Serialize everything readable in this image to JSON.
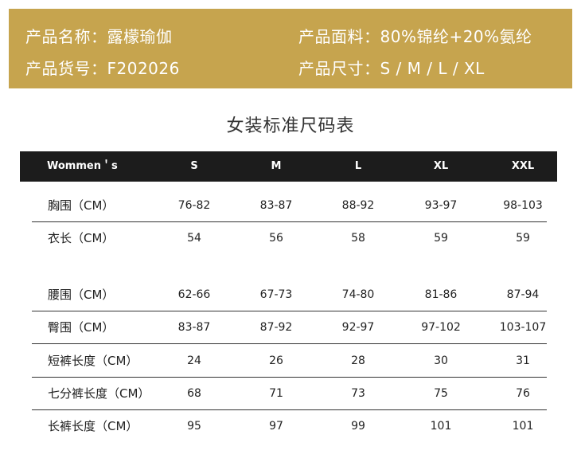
{
  "banner": {
    "name_label": "产品名称：",
    "name_value": "露檬瑜伽",
    "fabric_label": "产品面料：",
    "fabric_value": "80%锦纶+20%氨纶",
    "sku_label": "产品货号：",
    "sku_value": "F202026",
    "size_label": "产品尺寸：",
    "size_value": "S / M / L / XL"
  },
  "table": {
    "title": "女装标准尺码表",
    "header": [
      "Wommen＇s",
      "S",
      "M",
      "L",
      "XL",
      "XXL"
    ],
    "group1": [
      {
        "label": "胸围（CM）",
        "values": [
          "76-82",
          "83-87",
          "88-92",
          "93-97",
          "98-103"
        ]
      },
      {
        "label": "衣长（CM）",
        "values": [
          "54",
          "56",
          "58",
          "59",
          "59"
        ]
      }
    ],
    "group2": [
      {
        "label": "腰围（CM）",
        "values": [
          "62-66",
          "67-73",
          "74-80",
          "81-86",
          "87-94"
        ]
      },
      {
        "label": "臀围（CM）",
        "values": [
          "83-87",
          "87-92",
          "92-97",
          "97-102",
          "103-107"
        ]
      },
      {
        "label": "短裤长度（CM）",
        "values": [
          "24",
          "26",
          "28",
          "30",
          "31"
        ]
      },
      {
        "label": "七分裤长度（CM）",
        "values": [
          "68",
          "71",
          "73",
          "75",
          "76"
        ]
      },
      {
        "label": "长裤长度（CM）",
        "values": [
          "95",
          "97",
          "99",
          "101",
          "101"
        ]
      }
    ]
  }
}
